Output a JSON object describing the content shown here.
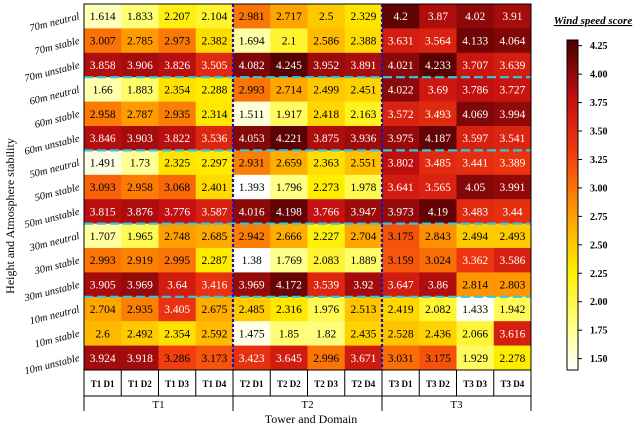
{
  "chart_data": {
    "type": "heatmap",
    "title": "",
    "xlabel": "Tower and Domain",
    "ylabel": "Height and Atmosphere stability",
    "x_categories": [
      "T1 D1",
      "T1 D2",
      "T1 D3",
      "T1 D4",
      "T2 D1",
      "T2 D2",
      "T2 D3",
      "T2 D4",
      "T3 D1",
      "T3 D2",
      "T3 D3",
      "T3 D4"
    ],
    "x_groups": [
      "T1",
      "T2",
      "T3"
    ],
    "y_categories": [
      "70m neutral",
      "70m stable",
      "70m unstable",
      "60m neutral",
      "60m stable",
      "60m unstable",
      "50m neutral",
      "50m stable",
      "50m unstable",
      "30m neutral",
      "30m stable",
      "30m unstable",
      "10m neutral",
      "10m stable",
      "10m unstable"
    ],
    "values": [
      [
        "1.614",
        "1.833",
        "2.207",
        "2.104",
        "2.981",
        "2.717",
        "2.5",
        "2.329",
        "4.2",
        "3.87",
        "4.02",
        "3.91"
      ],
      [
        "3.007",
        "2.785",
        "2.973",
        "2.382",
        "1.694",
        "2.1",
        "2.586",
        "2.388",
        "3.631",
        "3.564",
        "4.133",
        "4.064"
      ],
      [
        "3.858",
        "3.906",
        "3.826",
        "3.505",
        "4.082",
        "4.245",
        "3.952",
        "3.891",
        "4.021",
        "4.233",
        "3.707",
        "3.639"
      ],
      [
        "1.66",
        "1.883",
        "2.354",
        "2.288",
        "2.993",
        "2.714",
        "2.499",
        "2.451",
        "4.022",
        "3.69",
        "3.786",
        "3.727"
      ],
      [
        "2.958",
        "2.787",
        "2.935",
        "2.314",
        "1.511",
        "1.917",
        "2.418",
        "2.163",
        "3.572",
        "3.493",
        "4.069",
        "3.994"
      ],
      [
        "3.846",
        "3.903",
        "3.822",
        "3.536",
        "4.053",
        "4.221",
        "3.875",
        "3.936",
        "3.975",
        "4.187",
        "3.597",
        "3.541"
      ],
      [
        "1.491",
        "1.73",
        "2.325",
        "2.297",
        "2.931",
        "2.659",
        "2.363",
        "2.551",
        "3.802",
        "3.485",
        "3.441",
        "3.389"
      ],
      [
        "3.093",
        "2.958",
        "3.068",
        "2.401",
        "1.393",
        "1.796",
        "2.273",
        "1.978",
        "3.641",
        "3.565",
        "4.05",
        "3.991"
      ],
      [
        "3.815",
        "3.876",
        "3.776",
        "3.587",
        "4.016",
        "4.198",
        "3.766",
        "3.947",
        "3.973",
        "4.19",
        "3.483",
        "3.44"
      ],
      [
        "1.707",
        "1.965",
        "2.748",
        "2.685",
        "2.942",
        "2.666",
        "2.227",
        "2.704",
        "3.175",
        "2.843",
        "2.494",
        "2.493"
      ],
      [
        "2.993",
        "2.919",
        "2.995",
        "2.287",
        "1.38",
        "1.769",
        "2.083",
        "1.889",
        "3.159",
        "3.024",
        "3.362",
        "3.586"
      ],
      [
        "3.905",
        "3.969",
        "3.64",
        "3.416",
        "3.969",
        "4.172",
        "3.539",
        "3.92",
        "3.647",
        "3.86",
        "2.814",
        "2.803"
      ],
      [
        "2.704",
        "2.935",
        "3.405",
        "2.675",
        "2.485",
        "2.316",
        "1.976",
        "2.513",
        "2.419",
        "2.082",
        "1.433",
        "1.942"
      ],
      [
        "2.6",
        "2.492",
        "2.354",
        "2.592",
        "1.475",
        "1.85",
        "1.82",
        "2.435",
        "2.528",
        "2.436",
        "2.066",
        "3.616"
      ],
      [
        "3.924",
        "3.918",
        "3.286",
        "3.173",
        "3.423",
        "3.645",
        "2.996",
        "3.671",
        "3.031",
        "3.175",
        "1.929",
        "2.278"
      ]
    ],
    "colorbar": {
      "title": "Wind speed score",
      "min": 1.4,
      "max": 4.3,
      "ticks": [
        "4.25",
        "4.00",
        "3.75",
        "3.50",
        "3.25",
        "3.00",
        "2.75",
        "2.50",
        "2.25",
        "2.00",
        "1.75",
        "1.50"
      ],
      "colormap": "hot_r"
    },
    "separators": {
      "vertical_after_columns": [
        4,
        8
      ],
      "horizontal_after_rows": [
        3,
        6,
        9,
        12
      ],
      "vertical_color": "#1515b0",
      "horizontal_color": "#30c8e8"
    }
  }
}
